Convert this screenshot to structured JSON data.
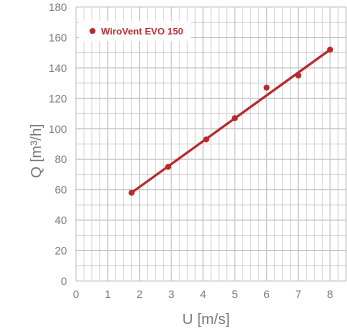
{
  "chart_data": {
    "type": "line",
    "title": "",
    "xlabel": "U [m/s]",
    "ylabel": "Q [m³/h]",
    "xlim": [
      0,
      8.5
    ],
    "ylim": [
      0,
      180
    ],
    "x_ticks": [
      0,
      1,
      2,
      3,
      4,
      5,
      6,
      7,
      8
    ],
    "y_ticks": [
      0,
      20,
      40,
      60,
      80,
      100,
      120,
      140,
      160,
      180
    ],
    "grid": true,
    "legend_position": "top-left",
    "colors": {
      "series": "#b7292c",
      "grid": "#c4c4c4",
      "text": "#777777"
    },
    "series": [
      {
        "name": "WiroVent EVO 150",
        "points": [
          {
            "x": 1.75,
            "y": 58
          },
          {
            "x": 2.9,
            "y": 75
          },
          {
            "x": 4.1,
            "y": 93
          },
          {
            "x": 5.0,
            "y": 107
          },
          {
            "x": 6.0,
            "y": 127
          },
          {
            "x": 7.0,
            "y": 135
          },
          {
            "x": 8.0,
            "y": 152
          }
        ],
        "trendline": {
          "from": {
            "x": 1.75,
            "y": 58
          },
          "to": {
            "x": 8.0,
            "y": 152
          }
        }
      }
    ]
  }
}
